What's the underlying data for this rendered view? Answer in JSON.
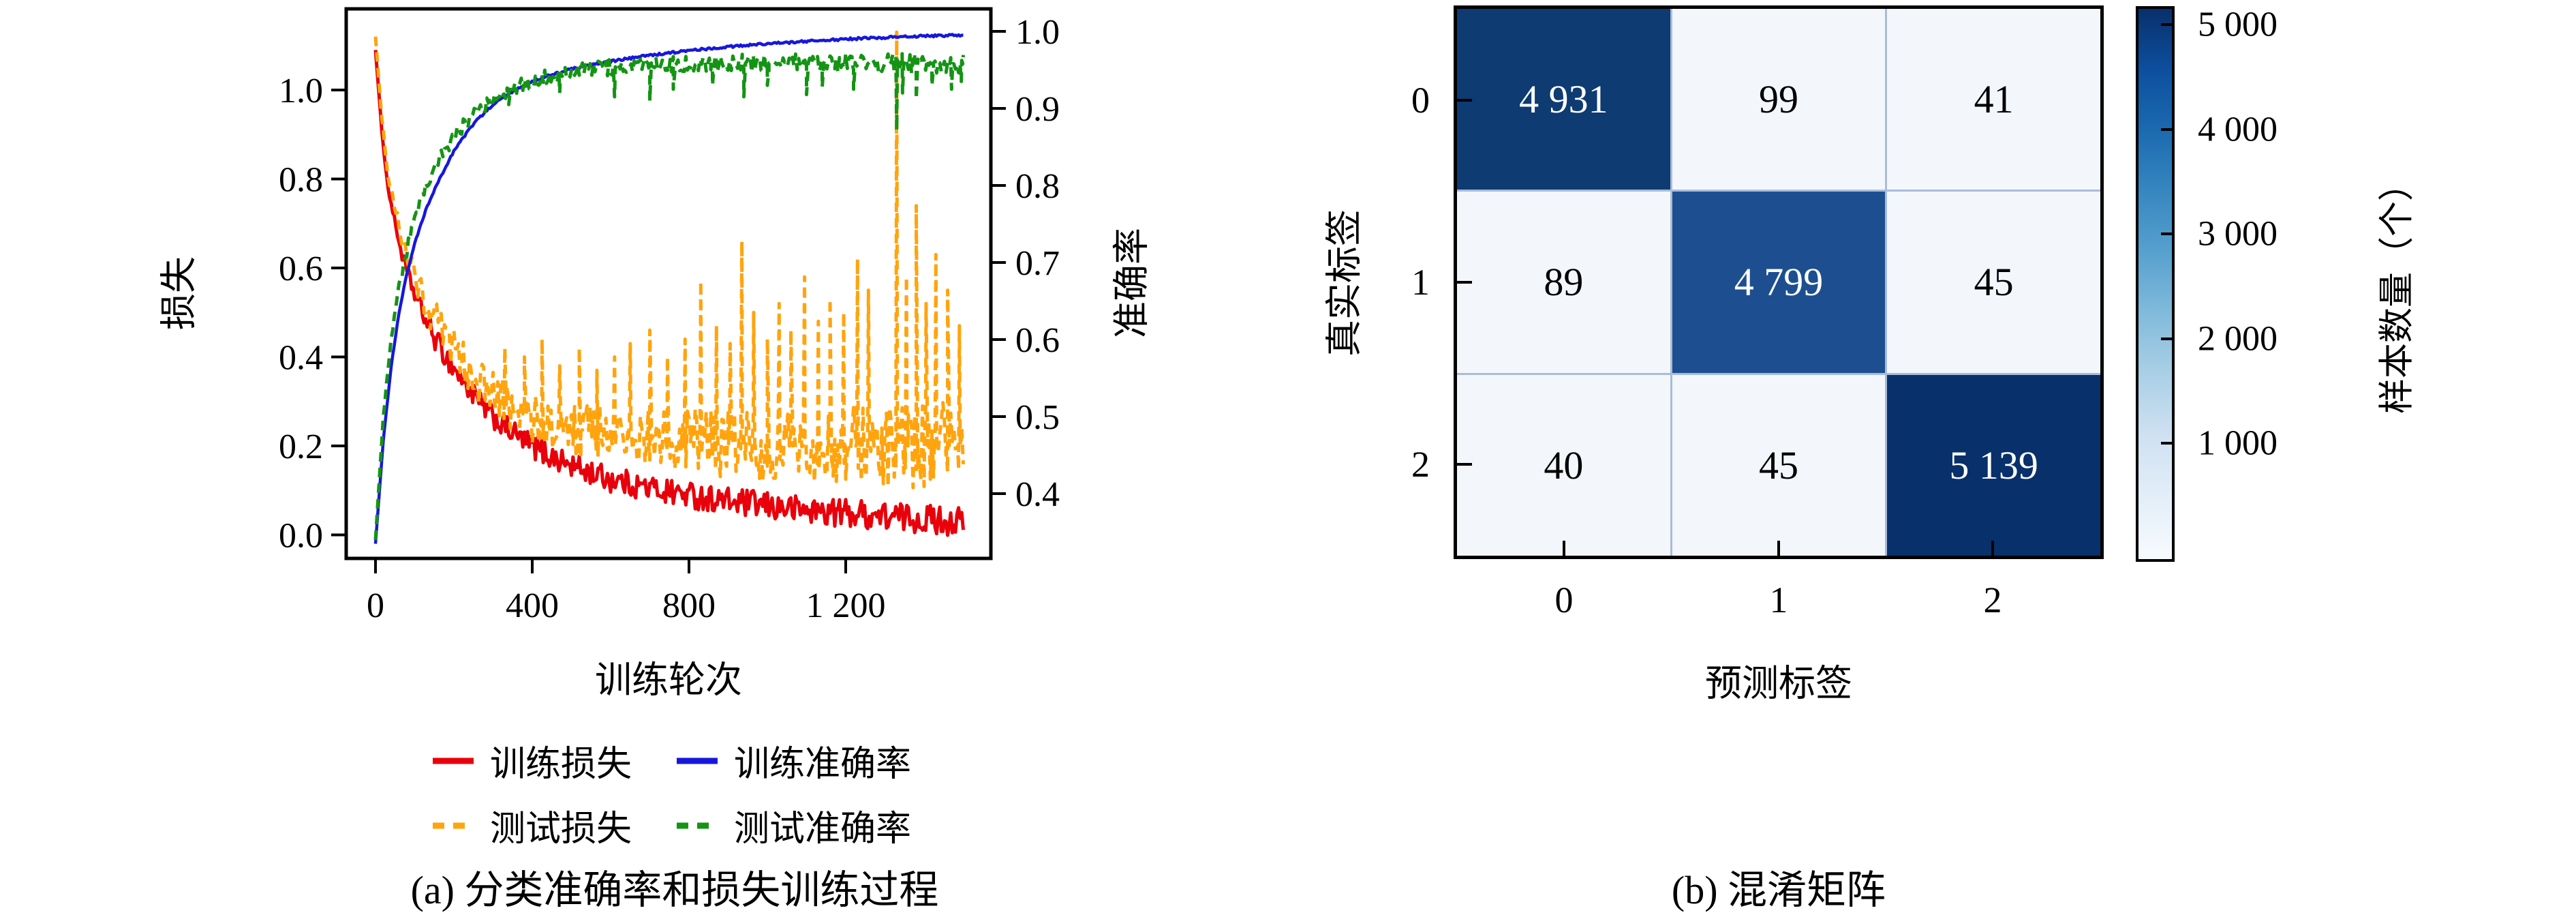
{
  "figure": {
    "panels": [
      {
        "id": "a",
        "caption": "(a) 分类准确率和损失训练过程",
        "x_label": "训练轮次",
        "y_left_label": "损失",
        "y_right_label": "准确率"
      },
      {
        "id": "b",
        "caption": "(b) 混淆矩阵",
        "x_label": "预测标签",
        "y_label": "真实标签",
        "colorbar_label": "样本数量（个）"
      }
    ]
  },
  "chart_data": [
    {
      "type": "line",
      "title": "分类准确率和损失训练过程",
      "xlabel": "训练轮次",
      "ylabel_left": "损失",
      "ylabel_right": "准确率",
      "x_range": [
        0,
        1500
      ],
      "x_ticks": [
        0,
        400,
        800,
        1200
      ],
      "x_tick_labels": [
        "0",
        "400",
        "800",
        "1 200"
      ],
      "loss_ticks": [
        1.0,
        0.8,
        0.6,
        0.4,
        0.2,
        0.0
      ],
      "loss_tick_labels": [
        "1.0",
        "0.8",
        "0.6",
        "0.4",
        "0.2",
        "0.0"
      ],
      "acc_ticks": [
        1.0,
        0.9,
        0.8,
        0.7,
        0.6,
        0.5,
        0.4
      ],
      "acc_tick_labels": [
        "1.0",
        "0.9",
        "0.8",
        "0.7",
        "0.6",
        "0.5",
        "0.4"
      ],
      "grid": false,
      "legend_position": "below",
      "series": [
        {
          "name": "训练损失",
          "axis": "loss",
          "color": "#e8000b",
          "dash": false,
          "noise": 0.026,
          "noise_growth": 0.3,
          "trend": [
            [
              0,
              1.09
            ],
            [
              15,
              0.92
            ],
            [
              30,
              0.79
            ],
            [
              50,
              0.7
            ],
            [
              70,
              0.62
            ],
            [
              100,
              0.54
            ],
            [
              140,
              0.46
            ],
            [
              180,
              0.4
            ],
            [
              220,
              0.35
            ],
            [
              270,
              0.29
            ],
            [
              320,
              0.25
            ],
            [
              380,
              0.21
            ],
            [
              440,
              0.18
            ],
            [
              500,
              0.155
            ],
            [
              600,
              0.125
            ],
            [
              700,
              0.105
            ],
            [
              800,
              0.09
            ],
            [
              900,
              0.075
            ],
            [
              1000,
              0.065
            ],
            [
              1100,
              0.055
            ],
            [
              1200,
              0.05
            ],
            [
              1300,
              0.042
            ],
            [
              1400,
              0.036
            ],
            [
              1500,
              0.03
            ]
          ],
          "spikes": []
        },
        {
          "name": "测试损失",
          "axis": "loss",
          "color": "#ffa40e",
          "dash": true,
          "noise": 0.042,
          "noise_growth": 1.4,
          "trend": [
            [
              0,
              1.12
            ],
            [
              15,
              0.95
            ],
            [
              30,
              0.82
            ],
            [
              50,
              0.73
            ],
            [
              70,
              0.66
            ],
            [
              100,
              0.58
            ],
            [
              140,
              0.5
            ],
            [
              180,
              0.44
            ],
            [
              220,
              0.39
            ],
            [
              270,
              0.34
            ],
            [
              320,
              0.3
            ],
            [
              380,
              0.27
            ],
            [
              440,
              0.25
            ],
            [
              500,
              0.235
            ],
            [
              600,
              0.225
            ],
            [
              700,
              0.215
            ],
            [
              800,
              0.21
            ],
            [
              900,
              0.205
            ],
            [
              1000,
              0.2
            ],
            [
              1100,
              0.2
            ],
            [
              1200,
              0.2
            ],
            [
              1300,
              0.2
            ],
            [
              1400,
              0.2
            ],
            [
              1500,
              0.2
            ]
          ],
          "spikes": [
            [
              330,
              0.42
            ],
            [
              380,
              0.4
            ],
            [
              425,
              0.44
            ],
            [
              470,
              0.38
            ],
            [
              520,
              0.42
            ],
            [
              565,
              0.37
            ],
            [
              610,
              0.4
            ],
            [
              650,
              0.43
            ],
            [
              700,
              0.46
            ],
            [
              745,
              0.4
            ],
            [
              790,
              0.44
            ],
            [
              830,
              0.57
            ],
            [
              870,
              0.47
            ],
            [
              905,
              0.43
            ],
            [
              935,
              0.66
            ],
            [
              965,
              0.5
            ],
            [
              1000,
              0.44
            ],
            [
              1030,
              0.52
            ],
            [
              1060,
              0.46
            ],
            [
              1095,
              0.58
            ],
            [
              1130,
              0.48
            ],
            [
              1160,
              0.53
            ],
            [
              1195,
              0.5
            ],
            [
              1230,
              0.62
            ],
            [
              1258,
              0.55
            ],
            [
              1330,
              1.13
            ],
            [
              1355,
              0.58
            ],
            [
              1380,
              0.74
            ],
            [
              1405,
              0.52
            ],
            [
              1430,
              0.63
            ],
            [
              1460,
              0.55
            ],
            [
              1490,
              0.47
            ]
          ]
        },
        {
          "name": "训练准确率",
          "axis": "acc",
          "color": "#1717dc",
          "dash": false,
          "noise": 0.0015,
          "noise_growth": 0,
          "trend": [
            [
              0,
              0.335
            ],
            [
              20,
              0.47
            ],
            [
              40,
              0.565
            ],
            [
              60,
              0.635
            ],
            [
              80,
              0.685
            ],
            [
              100,
              0.725
            ],
            [
              130,
              0.77
            ],
            [
              160,
              0.805
            ],
            [
              200,
              0.845
            ],
            [
              250,
              0.88
            ],
            [
              300,
              0.905
            ],
            [
              350,
              0.922
            ],
            [
              400,
              0.935
            ],
            [
              450,
              0.944
            ],
            [
              500,
              0.951
            ],
            [
              600,
              0.961
            ],
            [
              700,
              0.969
            ],
            [
              800,
              0.975
            ],
            [
              900,
              0.98
            ],
            [
              1000,
              0.984
            ],
            [
              1100,
              0.987
            ],
            [
              1200,
              0.99
            ],
            [
              1300,
              0.992
            ],
            [
              1400,
              0.994
            ],
            [
              1500,
              0.995
            ]
          ],
          "spikes": []
        },
        {
          "name": "测试准确率",
          "axis": "acc",
          "color": "#149414",
          "dash": true,
          "noise": 0.009,
          "noise_growth": 0.5,
          "trend": [
            [
              0,
              0.34
            ],
            [
              20,
              0.5
            ],
            [
              40,
              0.6
            ],
            [
              60,
              0.67
            ],
            [
              80,
              0.715
            ],
            [
              100,
              0.755
            ],
            [
              130,
              0.8
            ],
            [
              160,
              0.83
            ],
            [
              200,
              0.862
            ],
            [
              250,
              0.893
            ],
            [
              300,
              0.913
            ],
            [
              350,
              0.926
            ],
            [
              400,
              0.936
            ],
            [
              450,
              0.943
            ],
            [
              500,
              0.948
            ],
            [
              600,
              0.953
            ],
            [
              700,
              0.955
            ],
            [
              800,
              0.957
            ],
            [
              900,
              0.958
            ],
            [
              1000,
              0.959
            ],
            [
              1100,
              0.958
            ],
            [
              1200,
              0.96
            ],
            [
              1300,
              0.958
            ],
            [
              1400,
              0.959
            ],
            [
              1500,
              0.958
            ]
          ],
          "spikes": [
            [
              340,
              0.905
            ],
            [
              470,
              0.92
            ],
            [
              610,
              0.915
            ],
            [
              700,
              0.91
            ],
            [
              760,
              0.925
            ],
            [
              860,
              0.93
            ],
            [
              940,
              0.915
            ],
            [
              1000,
              0.93
            ],
            [
              1100,
              0.918
            ],
            [
              1140,
              0.928
            ],
            [
              1220,
              0.925
            ],
            [
              1330,
              0.872
            ],
            [
              1345,
              0.92
            ],
            [
              1380,
              0.912
            ],
            [
              1420,
              0.93
            ],
            [
              1470,
              0.925
            ],
            [
              1495,
              0.935
            ]
          ]
        }
      ],
      "legend": [
        {
          "label": "训练损失",
          "color": "#e8000b",
          "dash": false
        },
        {
          "label": "测试损失",
          "color": "#ffa40e",
          "dash": true
        },
        {
          "label": "训练准确率",
          "color": "#1717dc",
          "dash": false
        },
        {
          "label": "测试准确率",
          "color": "#149414",
          "dash": true
        }
      ]
    },
    {
      "type": "heatmap",
      "title": "混淆矩阵",
      "xlabel": "预测标签",
      "ylabel": "真实标签",
      "x_categories": [
        "0",
        "1",
        "2"
      ],
      "y_categories": [
        "0",
        "1",
        "2"
      ],
      "values": [
        [
          4931,
          99,
          41
        ],
        [
          89,
          4799,
          45
        ],
        [
          40,
          45,
          5139
        ]
      ],
      "value_labels": [
        [
          "4 931",
          "99",
          "41"
        ],
        [
          "89",
          "4 799",
          "45"
        ],
        [
          "40",
          "45",
          "5 139"
        ]
      ],
      "cell_colors": [
        [
          "#0d3b72",
          "#f3f7fc",
          "#f3f7fc"
        ],
        [
          "#f3f7fc",
          "#1d4f90",
          "#f3f7fc"
        ],
        [
          "#f3f7fc",
          "#f3f7fc",
          "#08306b"
        ]
      ],
      "cell_text_colors": [
        [
          "#ffffff",
          "#000000",
          "#000000"
        ],
        [
          "#000000",
          "#ffffff",
          "#000000"
        ],
        [
          "#000000",
          "#000000",
          "#ffffff"
        ]
      ],
      "grid_line_color": "#a9bcd8",
      "colorbar": {
        "label": "样本数量（个）",
        "range": [
          0,
          5150
        ],
        "ticks": [
          5000,
          4000,
          3000,
          2000,
          1000
        ],
        "tick_labels": [
          "5 000",
          "4 000",
          "3 000",
          "2 000",
          "1 000"
        ],
        "gradient_bottom_to_top": [
          "#f7fbff",
          "#e3eef8",
          "#d0e1f2",
          "#abd0e6",
          "#82bbdb",
          "#58a1cf",
          "#3787c0",
          "#1c6ab0",
          "#0d4f9e",
          "#08306b"
        ]
      }
    }
  ]
}
